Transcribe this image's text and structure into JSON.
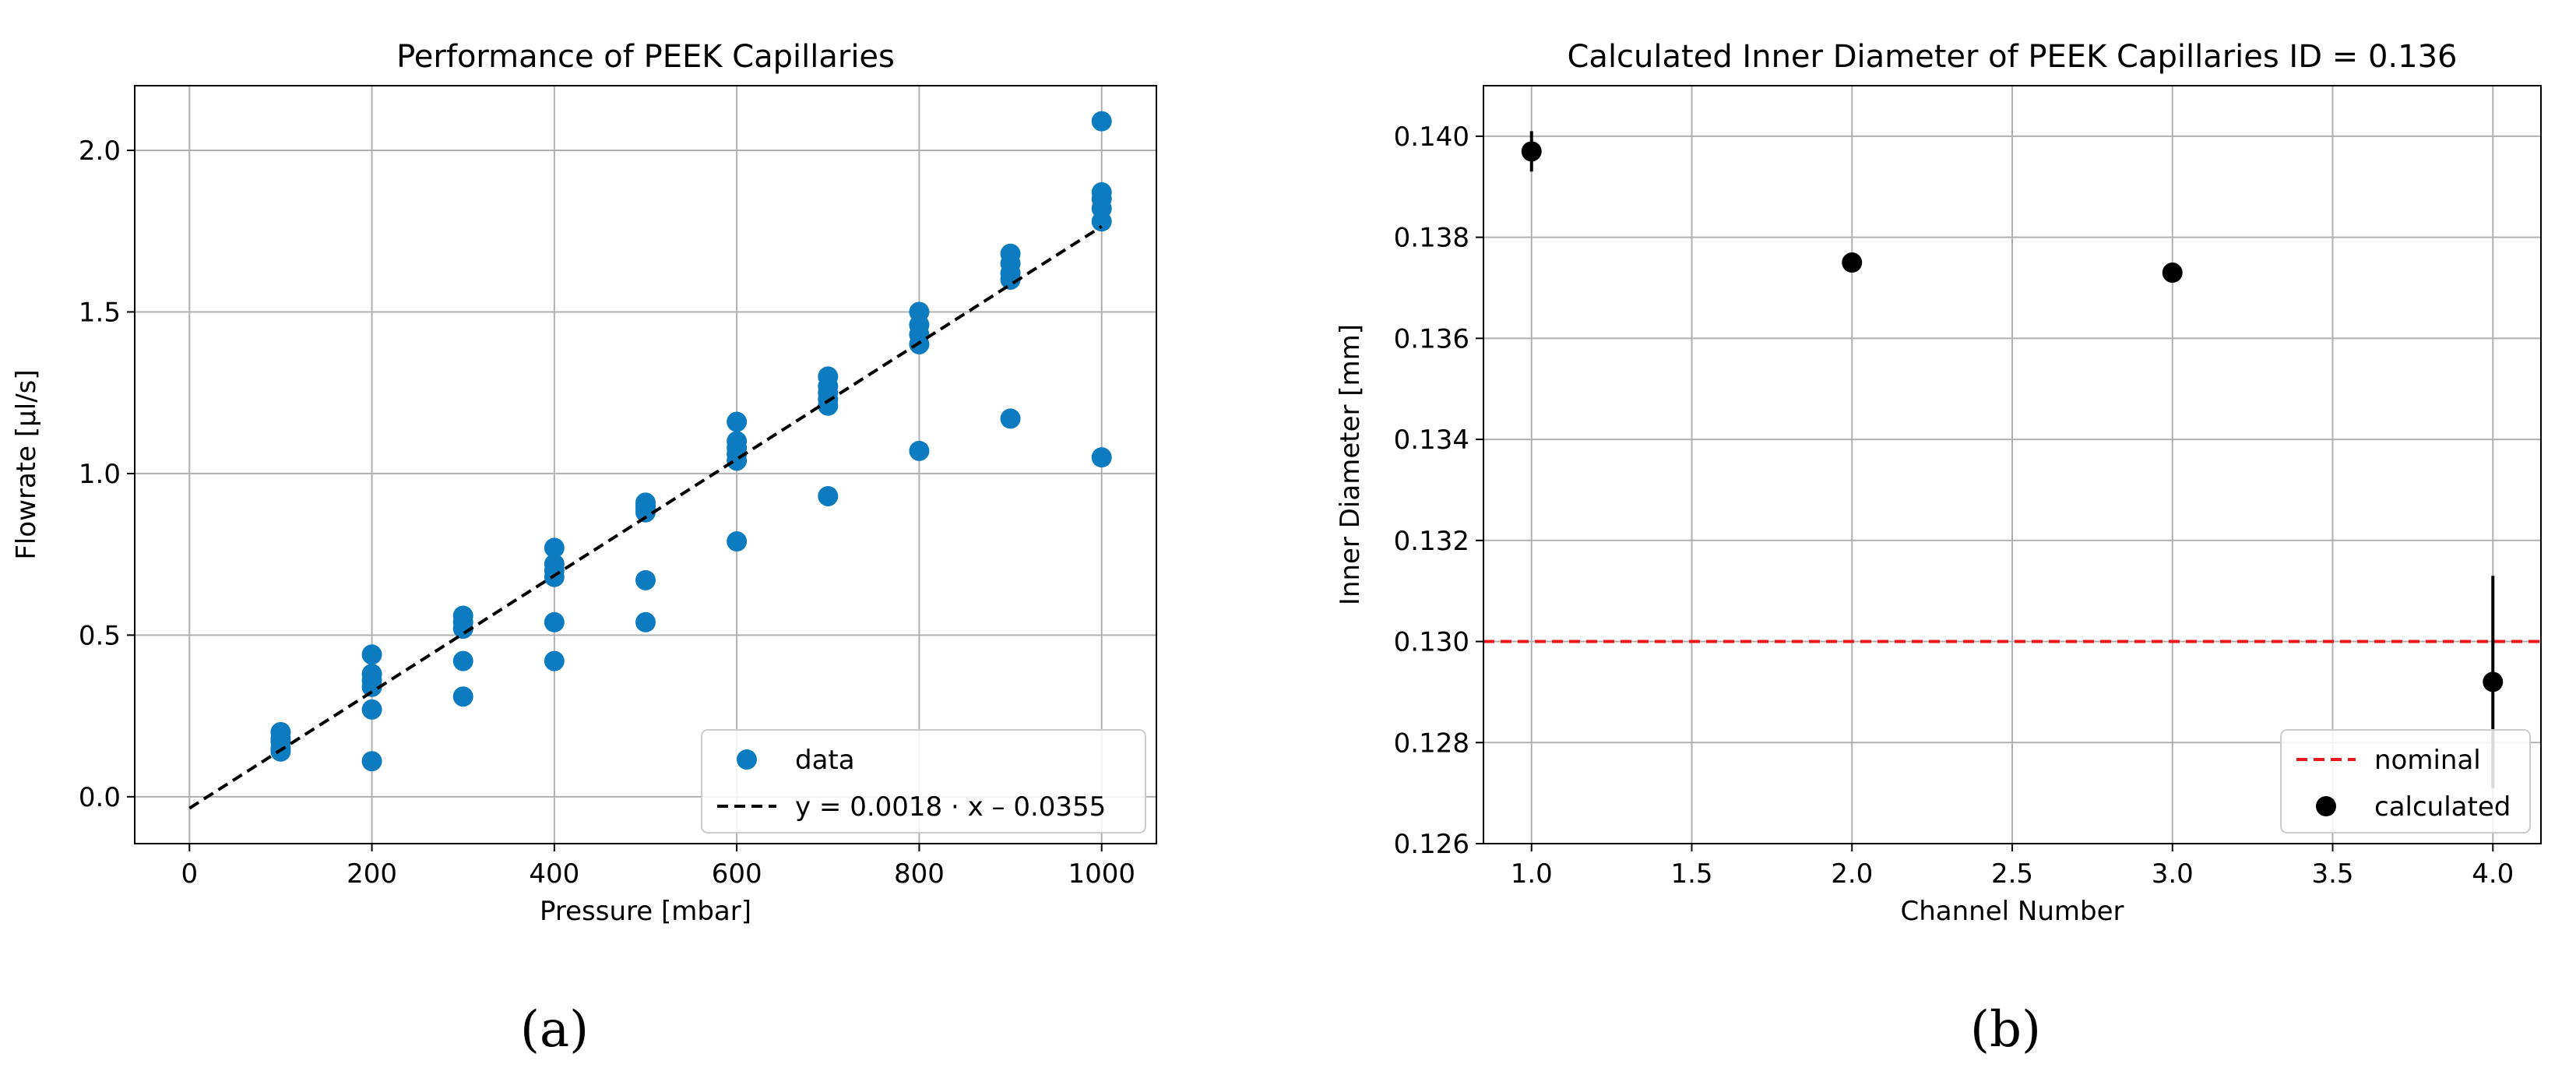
{
  "figure": {
    "label_a": "(a)",
    "label_b": "(b)"
  },
  "chart_data": [
    {
      "id": "a",
      "type": "scatter",
      "title": "Performance of PEEK Capillaries",
      "xlabel": "Pressure [mbar]",
      "ylabel": "Flowrate [µl/s]",
      "xlim": [
        -60,
        1060
      ],
      "ylim": [
        -0.145,
        2.2
      ],
      "xticks": [
        0,
        200,
        400,
        600,
        800,
        1000
      ],
      "yticks": [
        0.0,
        0.5,
        1.0,
        1.5,
        2.0
      ],
      "ytick_labels": [
        "0.0",
        "0.5",
        "1.0",
        "1.5",
        "2.0"
      ],
      "grid": true,
      "legend_position": "lower-right",
      "marker_color": "#0c7bbf",
      "series": [
        {
          "name": "data",
          "kind": "scatter",
          "points": [
            [
              100,
              0.2
            ],
            [
              100,
              0.18
            ],
            [
              100,
              0.17
            ],
            [
              100,
              0.15
            ],
            [
              100,
              0.14
            ],
            [
              200,
              0.44
            ],
            [
              200,
              0.38
            ],
            [
              200,
              0.36
            ],
            [
              200,
              0.34
            ],
            [
              200,
              0.27
            ],
            [
              200,
              0.11
            ],
            [
              300,
              0.56
            ],
            [
              300,
              0.54
            ],
            [
              300,
              0.52
            ],
            [
              300,
              0.42
            ],
            [
              300,
              0.31
            ],
            [
              400,
              0.77
            ],
            [
              400,
              0.72
            ],
            [
              400,
              0.7
            ],
            [
              400,
              0.68
            ],
            [
              400,
              0.54
            ],
            [
              400,
              0.42
            ],
            [
              500,
              0.91
            ],
            [
              500,
              0.9
            ],
            [
              500,
              0.89
            ],
            [
              500,
              0.88
            ],
            [
              500,
              0.67
            ],
            [
              500,
              0.54
            ],
            [
              600,
              1.16
            ],
            [
              600,
              1.1
            ],
            [
              600,
              1.08
            ],
            [
              600,
              1.06
            ],
            [
              600,
              1.04
            ],
            [
              600,
              0.79
            ],
            [
              700,
              1.3
            ],
            [
              700,
              1.27
            ],
            [
              700,
              1.25
            ],
            [
              700,
              1.23
            ],
            [
              700,
              1.21
            ],
            [
              700,
              0.93
            ],
            [
              800,
              1.5
            ],
            [
              800,
              1.46
            ],
            [
              800,
              1.43
            ],
            [
              800,
              1.4
            ],
            [
              800,
              1.07
            ],
            [
              900,
              1.68
            ],
            [
              900,
              1.65
            ],
            [
              900,
              1.62
            ],
            [
              900,
              1.6
            ],
            [
              900,
              1.17
            ],
            [
              1000,
              2.09
            ],
            [
              1000,
              1.87
            ],
            [
              1000,
              1.85
            ],
            [
              1000,
              1.82
            ],
            [
              1000,
              1.78
            ],
            [
              1000,
              1.05
            ]
          ]
        },
        {
          "name": "y = 0.0018 · x – 0.0355",
          "kind": "fit-line",
          "slope": 0.0018,
          "intercept": -0.0355,
          "x_range": [
            0,
            1000
          ],
          "color": "#000000"
        }
      ]
    },
    {
      "id": "b",
      "type": "scatter",
      "title": "Calculated Inner Diameter of PEEK Capillaries ID = 0.136",
      "xlabel": "Channel Number",
      "ylabel": "Inner Diameter [mm]",
      "xlim": [
        0.85,
        4.15
      ],
      "ylim": [
        0.126,
        0.141
      ],
      "xticks": [
        1.0,
        1.5,
        2.0,
        2.5,
        3.0,
        3.5,
        4.0
      ],
      "xtick_labels": [
        "1.0",
        "1.5",
        "2.0",
        "2.5",
        "3.0",
        "3.5",
        "4.0"
      ],
      "yticks": [
        0.126,
        0.128,
        0.13,
        0.132,
        0.134,
        0.136,
        0.138,
        0.14
      ],
      "ytick_labels": [
        "0.126",
        "0.128",
        "0.130",
        "0.132",
        "0.134",
        "0.136",
        "0.138",
        "0.140"
      ],
      "grid": true,
      "legend_position": "lower-right",
      "series": [
        {
          "name": "nominal",
          "kind": "hline",
          "y": 0.13,
          "color": "#e8171b"
        },
        {
          "name": "calculated",
          "kind": "errorbar",
          "color": "#000000",
          "points": [
            {
              "x": 1.0,
              "y": 0.1397,
              "yerr": 0.0004
            },
            {
              "x": 2.0,
              "y": 0.1375,
              "yerr": 0.0
            },
            {
              "x": 3.0,
              "y": 0.1373,
              "yerr": 0.0
            },
            {
              "x": 4.0,
              "y": 0.1292,
              "yerr": 0.0021
            }
          ]
        }
      ]
    }
  ]
}
